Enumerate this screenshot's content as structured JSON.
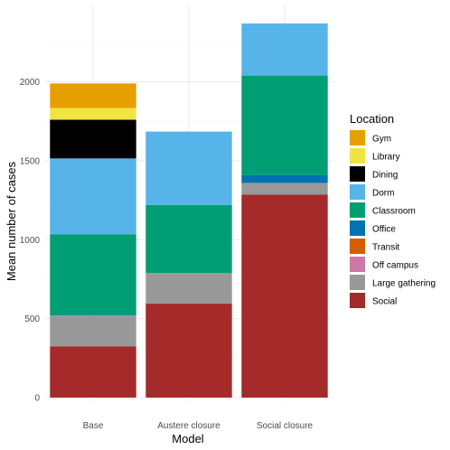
{
  "chart_data": {
    "type": "bar",
    "stacked": true,
    "categories": [
      "Base",
      "Austere closure",
      "Social closure"
    ],
    "xlabel": "Model",
    "ylabel": "Mean number of cases",
    "ylim": [
      0,
      2400
    ],
    "yticks": [
      0,
      500,
      1000,
      1500,
      2000
    ],
    "grid": true,
    "legend_title": "Location",
    "legend_position": "right",
    "series": [
      {
        "name": "Social",
        "color": "#A52A2A",
        "values": [
          325,
          595,
          1285
        ]
      },
      {
        "name": "Large gathering",
        "color": "#999999",
        "values": [
          195,
          195,
          75
        ]
      },
      {
        "name": "Off campus",
        "color": "#CC79A7",
        "values": [
          0,
          0,
          0
        ]
      },
      {
        "name": "Transit",
        "color": "#D55E00",
        "values": [
          0,
          0,
          0
        ]
      },
      {
        "name": "Office",
        "color": "#0072B2",
        "values": [
          5,
          0,
          50
        ]
      },
      {
        "name": "Classroom",
        "color": "#009E73",
        "values": [
          510,
          430,
          630
        ]
      },
      {
        "name": "Dorm",
        "color": "#56B4E9",
        "values": [
          480,
          465,
          330
        ]
      },
      {
        "name": "Dining",
        "color": "#000000",
        "values": [
          245,
          0,
          0
        ]
      },
      {
        "name": "Library",
        "color": "#F0E442",
        "values": [
          75,
          0,
          0
        ]
      },
      {
        "name": "Gym",
        "color": "#E69F00",
        "values": [
          155,
          0,
          0
        ]
      }
    ],
    "legend_order": [
      "Gym",
      "Library",
      "Dining",
      "Dorm",
      "Classroom",
      "Office",
      "Transit",
      "Off campus",
      "Large gathering",
      "Social"
    ]
  }
}
